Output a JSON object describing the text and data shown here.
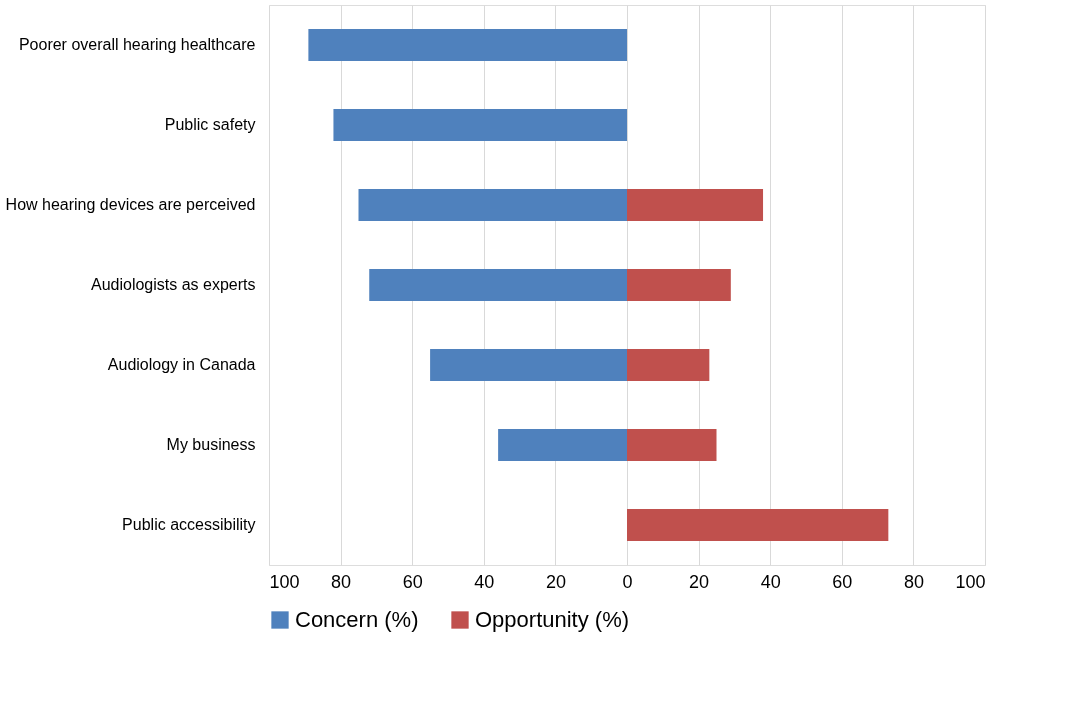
{
  "chart_data": {
    "type": "bar",
    "orientation": "horizontal",
    "stacked": true,
    "categories": [
      "Poorer overall hearing healthcare",
      "Public safety",
      "How hearing devices are perceived",
      "Audiologists as experts",
      "Audiology in Canada",
      "My business",
      "Public accessibility"
    ],
    "series": [
      {
        "name": "Concern (%)",
        "color": "#4f81bd",
        "values": [
          -89,
          -82,
          -75,
          -72,
          -55,
          -36,
          null
        ]
      },
      {
        "name": "Opportunity (%)",
        "color": "#c0504d",
        "values": [
          null,
          null,
          38,
          29,
          23,
          25,
          73
        ]
      }
    ],
    "xlim": [
      -100,
      100
    ],
    "xticks": [
      {
        "value": -100,
        "label": "100"
      },
      {
        "value": -80,
        "label": "80"
      },
      {
        "value": -60,
        "label": "60"
      },
      {
        "value": -40,
        "label": "40"
      },
      {
        "value": -20,
        "label": "20"
      },
      0,
      20,
      40,
      60,
      80,
      100
    ],
    "grid": "x",
    "legend": "bottom"
  }
}
